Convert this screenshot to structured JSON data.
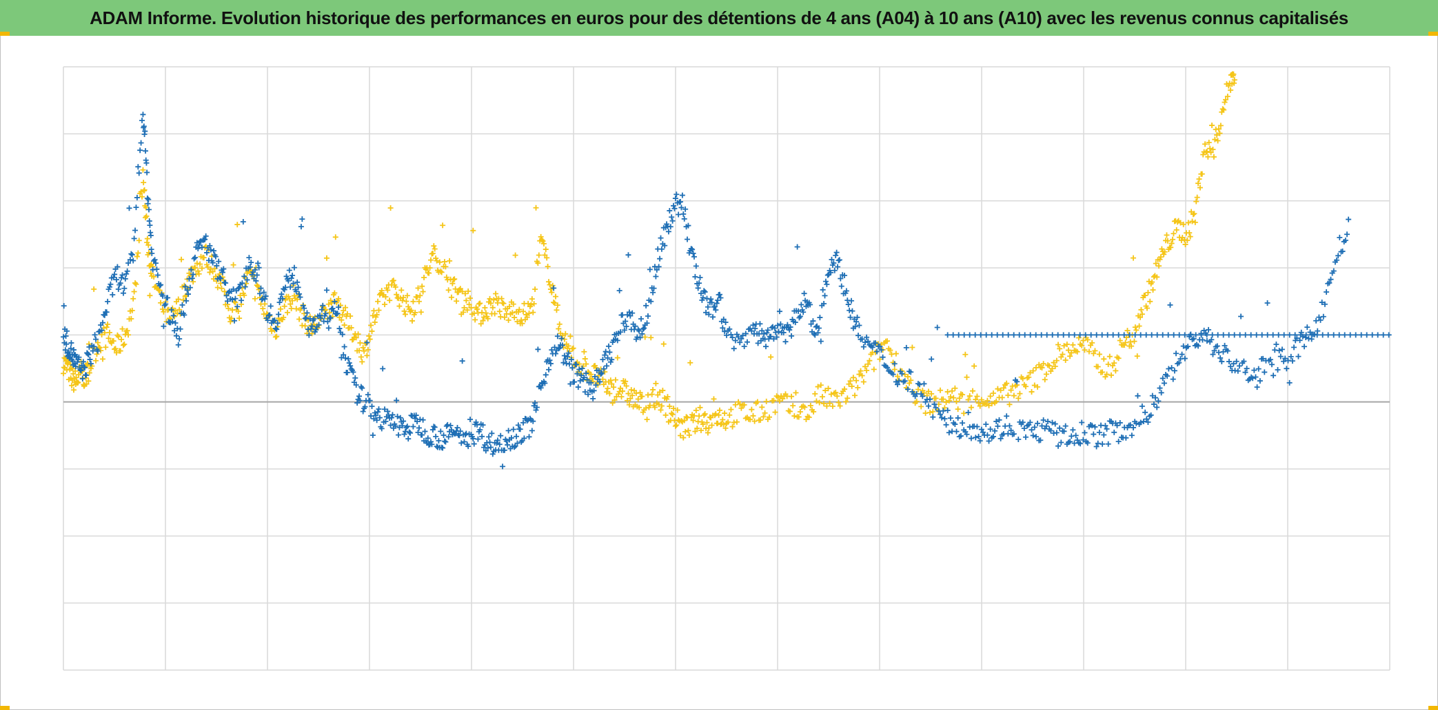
{
  "title": "ADAM Informe. Evolution historique des performances en euros pour des détentions de 4 ans (A04) à 10 ans (A10) avec les revenus connus capitalisés",
  "colors": {
    "title_bg": "#7dc87a",
    "series_blue": "#1f6fb5",
    "series_yellow": "#f5c518",
    "grid": "#d9d9d9",
    "baseline": "#a6a6a6"
  },
  "chart_data": {
    "type": "scatter",
    "marker": "+",
    "grid": true,
    "x_categories": 13,
    "y_gridlines": 9,
    "ylim": [
      -4,
      5
    ],
    "baseline_y": 0,
    "series": [
      {
        "color": "blue",
        "points": [
          [
            0.0,
            1.0
          ],
          [
            0.1,
            0.85
          ],
          [
            0.2,
            0.7
          ],
          [
            0.3,
            0.55
          ],
          [
            0.45,
            0.45
          ],
          [
            0.6,
            0.7
          ],
          [
            0.8,
            0.95
          ],
          [
            1.0,
            1.5
          ],
          [
            1.2,
            1.9
          ],
          [
            1.4,
            1.7
          ],
          [
            1.6,
            2.3
          ],
          [
            1.8,
            4.4
          ],
          [
            1.9,
            3.2
          ],
          [
            2.0,
            2.2
          ],
          [
            2.2,
            1.7
          ],
          [
            2.4,
            1.3
          ],
          [
            2.6,
            1.0
          ],
          [
            2.8,
            1.7
          ],
          [
            3.0,
            2.2
          ],
          [
            3.2,
            2.4
          ],
          [
            3.4,
            2.1
          ],
          [
            3.6,
            1.9
          ],
          [
            3.8,
            1.5
          ],
          [
            4.0,
            1.6
          ],
          [
            4.2,
            2.1
          ],
          [
            4.4,
            1.9
          ],
          [
            4.6,
            1.4
          ],
          [
            4.8,
            1.2
          ],
          [
            5.0,
            1.7
          ],
          [
            5.2,
            1.9
          ],
          [
            5.4,
            1.6
          ],
          [
            5.6,
            1.0
          ],
          [
            5.8,
            1.3
          ],
          [
            6.0,
            1.2
          ],
          [
            6.2,
            1.4
          ],
          [
            6.4,
            0.6
          ],
          [
            6.6,
            0.2
          ],
          [
            6.8,
            0.0
          ],
          [
            7.0,
            -0.1
          ],
          [
            7.2,
            -0.25
          ],
          [
            7.4,
            -0.3
          ],
          [
            7.6,
            -0.35
          ],
          [
            7.8,
            -0.4
          ],
          [
            8.0,
            -0.3
          ],
          [
            8.2,
            -0.45
          ],
          [
            8.4,
            -0.5
          ],
          [
            8.6,
            -0.55
          ],
          [
            8.8,
            -0.45
          ],
          [
            9.0,
            -0.5
          ],
          [
            9.2,
            -0.5
          ],
          [
            9.4,
            -0.4
          ],
          [
            9.6,
            -0.6
          ],
          [
            9.8,
            -0.65
          ],
          [
            10.0,
            -0.55
          ],
          [
            10.2,
            -0.5
          ],
          [
            10.4,
            -0.45
          ],
          [
            10.6,
            -0.3
          ],
          [
            10.8,
            0.2
          ],
          [
            11.0,
            0.7
          ],
          [
            11.2,
            0.9
          ],
          [
            11.4,
            0.6
          ],
          [
            11.6,
            0.4
          ],
          [
            11.8,
            0.3
          ],
          [
            12.0,
            0.2
          ],
          [
            12.2,
            0.5
          ],
          [
            12.4,
            0.8
          ],
          [
            12.6,
            1.1
          ],
          [
            12.8,
            1.3
          ],
          [
            13.0,
            1.0
          ],
          [
            13.2,
            1.3
          ],
          [
            13.4,
            2.0
          ],
          [
            13.6,
            2.5
          ],
          [
            13.8,
            2.9
          ],
          [
            14.0,
            3.0
          ],
          [
            14.2,
            2.2
          ],
          [
            14.4,
            1.7
          ],
          [
            14.6,
            1.3
          ],
          [
            14.8,
            1.6
          ],
          [
            15.0,
            1.0
          ],
          [
            15.3,
            0.9
          ],
          [
            15.6,
            1.1
          ],
          [
            15.8,
            1.0
          ],
          [
            16.0,
            0.9
          ],
          [
            16.2,
            1.2
          ],
          [
            16.4,
            1.0
          ],
          [
            16.6,
            1.3
          ],
          [
            16.8,
            1.5
          ],
          [
            17.0,
            1.0
          ],
          [
            17.2,
            1.6
          ],
          [
            17.4,
            2.2
          ],
          [
            17.6,
            1.9
          ],
          [
            17.8,
            1.4
          ],
          [
            18.0,
            1.0
          ],
          [
            18.3,
            0.8
          ],
          [
            18.6,
            0.6
          ],
          [
            18.9,
            0.4
          ],
          [
            19.2,
            0.3
          ],
          [
            19.5,
            0.1
          ],
          [
            19.8,
            -0.2
          ],
          [
            20.1,
            -0.35
          ],
          [
            20.4,
            -0.35
          ],
          [
            20.7,
            -0.4
          ],
          [
            21.0,
            -0.45
          ],
          [
            21.3,
            -0.35
          ],
          [
            21.6,
            -0.4
          ],
          [
            21.9,
            -0.45
          ],
          [
            22.2,
            -0.4
          ],
          [
            22.5,
            -0.5
          ],
          [
            22.8,
            -0.55
          ],
          [
            23.1,
            -0.45
          ],
          [
            23.4,
            -0.5
          ],
          [
            23.7,
            -0.45
          ],
          [
            24.0,
            -0.4
          ],
          [
            24.3,
            -0.3
          ],
          [
            24.6,
            -0.1
          ],
          [
            24.9,
            0.3
          ],
          [
            25.2,
            0.6
          ],
          [
            25.5,
            0.9
          ],
          [
            25.8,
            1.0
          ],
          [
            26.1,
            0.8
          ],
          [
            26.4,
            0.6
          ],
          [
            26.7,
            0.5
          ],
          [
            27.0,
            0.35
          ],
          [
            27.3,
            0.7
          ],
          [
            27.6,
            0.6
          ],
          [
            27.9,
            0.8
          ],
          [
            28.2,
            1.0
          ],
          [
            28.5,
            1.4
          ],
          [
            28.8,
            2.2
          ],
          [
            29.1,
            2.6
          ]
        ]
      },
      {
        "color": "yellow",
        "points": [
          [
            0.0,
            0.6
          ],
          [
            0.1,
            0.5
          ],
          [
            0.2,
            0.35
          ],
          [
            0.3,
            0.3
          ],
          [
            0.4,
            0.45
          ],
          [
            0.5,
            0.35
          ],
          [
            0.6,
            0.55
          ],
          [
            0.8,
            0.9
          ],
          [
            1.0,
            1.0
          ],
          [
            1.2,
            0.8
          ],
          [
            1.4,
            1.0
          ],
          [
            1.6,
            1.5
          ],
          [
            1.8,
            3.4
          ],
          [
            1.9,
            2.4
          ],
          [
            2.0,
            1.9
          ],
          [
            2.2,
            1.5
          ],
          [
            2.4,
            1.2
          ],
          [
            2.6,
            1.4
          ],
          [
            2.8,
            1.8
          ],
          [
            3.0,
            2.0
          ],
          [
            3.2,
            2.2
          ],
          [
            3.4,
            2.0
          ],
          [
            3.6,
            1.7
          ],
          [
            3.8,
            1.3
          ],
          [
            4.0,
            1.5
          ],
          [
            4.2,
            1.9
          ],
          [
            4.4,
            1.6
          ],
          [
            4.6,
            1.3
          ],
          [
            4.8,
            1.1
          ],
          [
            5.0,
            1.4
          ],
          [
            5.2,
            1.6
          ],
          [
            5.4,
            1.3
          ],
          [
            5.6,
            1.1
          ],
          [
            5.8,
            1.2
          ],
          [
            6.0,
            1.4
          ],
          [
            6.2,
            1.5
          ],
          [
            6.4,
            1.2
          ],
          [
            6.6,
            1.0
          ],
          [
            6.8,
            0.7
          ],
          [
            7.0,
            1.2
          ],
          [
            7.2,
            1.5
          ],
          [
            7.4,
            1.7
          ],
          [
            7.6,
            1.6
          ],
          [
            7.8,
            1.4
          ],
          [
            8.0,
            1.5
          ],
          [
            8.2,
            1.9
          ],
          [
            8.4,
            2.2
          ],
          [
            8.6,
            2.0
          ],
          [
            8.8,
            1.7
          ],
          [
            9.0,
            1.6
          ],
          [
            9.2,
            1.5
          ],
          [
            9.4,
            1.3
          ],
          [
            9.6,
            1.4
          ],
          [
            9.8,
            1.5
          ],
          [
            10.0,
            1.3
          ],
          [
            10.2,
            1.4
          ],
          [
            10.4,
            1.3
          ],
          [
            10.6,
            1.4
          ],
          [
            10.8,
            2.4
          ],
          [
            11.0,
            1.9
          ],
          [
            11.2,
            1.2
          ],
          [
            11.4,
            0.8
          ],
          [
            11.6,
            0.6
          ],
          [
            11.8,
            0.5
          ],
          [
            12.0,
            0.4
          ],
          [
            12.2,
            0.3
          ],
          [
            12.4,
            0.2
          ],
          [
            12.6,
            0.2
          ],
          [
            12.8,
            0.1
          ],
          [
            13.0,
            0.0
          ],
          [
            13.2,
            -0.1
          ],
          [
            13.4,
            0.1
          ],
          [
            13.6,
            0.0
          ],
          [
            13.8,
            -0.2
          ],
          [
            14.0,
            -0.4
          ],
          [
            14.2,
            -0.35
          ],
          [
            14.4,
            -0.25
          ],
          [
            14.6,
            -0.3
          ],
          [
            14.8,
            -0.2
          ],
          [
            15.0,
            -0.25
          ],
          [
            15.3,
            -0.15
          ],
          [
            15.6,
            -0.2
          ],
          [
            15.9,
            -0.1
          ],
          [
            16.2,
            0.0
          ],
          [
            16.5,
            -0.1
          ],
          [
            16.8,
            -0.2
          ],
          [
            17.1,
            0.1
          ],
          [
            17.4,
            0.0
          ],
          [
            17.7,
            0.1
          ],
          [
            18.0,
            0.3
          ],
          [
            18.3,
            0.6
          ],
          [
            18.6,
            0.9
          ],
          [
            18.9,
            0.5
          ],
          [
            19.2,
            0.2
          ],
          [
            19.5,
            0.0
          ],
          [
            19.8,
            0.0
          ],
          [
            20.1,
            0.1
          ],
          [
            20.4,
            -0.05
          ],
          [
            20.7,
            0.1
          ],
          [
            21.0,
            0.0
          ],
          [
            21.3,
            0.1
          ],
          [
            21.6,
            0.2
          ],
          [
            21.9,
            0.3
          ],
          [
            22.2,
            0.5
          ],
          [
            22.5,
            0.7
          ],
          [
            22.8,
            0.8
          ],
          [
            23.1,
            0.85
          ],
          [
            23.4,
            0.6
          ],
          [
            23.7,
            0.5
          ],
          [
            24.0,
            0.9
          ],
          [
            24.2,
            1.0
          ],
          [
            24.4,
            1.4
          ],
          [
            24.6,
            1.7
          ],
          [
            24.8,
            2.1
          ],
          [
            25.0,
            2.4
          ],
          [
            25.2,
            2.6
          ],
          [
            25.4,
            2.5
          ],
          [
            25.6,
            2.8
          ],
          [
            25.8,
            3.8
          ],
          [
            26.0,
            3.7
          ],
          [
            26.2,
            4.3
          ],
          [
            26.4,
            4.8
          ],
          [
            26.5,
            4.9
          ]
        ]
      }
    ]
  }
}
